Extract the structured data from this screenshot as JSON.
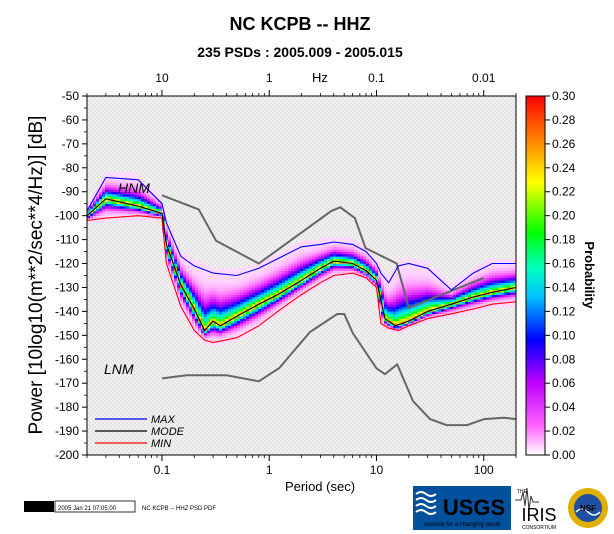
{
  "chart_data": {
    "type": "heatmap",
    "title": "NC KCPB -- HHZ",
    "subtitle": "235 PSDs : 2005.009 - 2005.015",
    "xlabel": "Period (sec)",
    "ylabel": "Power [10log10(m**2/sec**4/Hz)] [dB]",
    "top_axis_label": "Hz",
    "colorbar_label": "Probability",
    "x_scale": "log",
    "xlim": [
      0.02,
      200
    ],
    "ylim": [
      -200,
      -50
    ],
    "x_ticks": [
      0.1,
      1,
      10,
      100
    ],
    "x_tick_labels": [
      "0.1",
      "1",
      "10",
      "100"
    ],
    "top_ticks": [
      0.1,
      1,
      10,
      100
    ],
    "top_tick_labels": [
      "10",
      "1",
      "0.1",
      "0.01"
    ],
    "y_ticks": [
      -50,
      -60,
      -70,
      -80,
      -90,
      -100,
      -110,
      -120,
      -130,
      -140,
      -150,
      -160,
      -170,
      -180,
      -190,
      -200
    ],
    "y_tick_labels": [
      "-50",
      "-60",
      "-70",
      "-80",
      "-90",
      "-100",
      "-110",
      "-120",
      "-130",
      "-140",
      "-150",
      "-160",
      "-170",
      "-180",
      "-190",
      "-200"
    ],
    "colorbar_range": [
      0,
      0.3
    ],
    "colorbar_ticks": [
      0.0,
      0.02,
      0.04,
      0.06,
      0.08,
      0.1,
      0.12,
      0.14,
      0.16,
      0.18,
      0.2,
      0.22,
      0.24,
      0.26,
      0.28,
      0.3
    ],
    "colorbar_tick_labels": [
      "0.00",
      "0.02",
      "0.04",
      "0.06",
      "0.08",
      "0.10",
      "0.12",
      "0.14",
      "0.16",
      "0.18",
      "0.20",
      "0.22",
      "0.24",
      "0.26",
      "0.28",
      "0.30"
    ],
    "colormap": [
      "#ffffff",
      "#ff66ff",
      "#c000ff",
      "#0000ff",
      "#00c0ff",
      "#00ffc0",
      "#00ff00",
      "#ffff00",
      "#ff8000",
      "#ff0000"
    ],
    "legend": {
      "placement": "bottom-left",
      "entries": [
        {
          "label": "MAX",
          "color": "#0000ff"
        },
        {
          "label": "MODE",
          "color": "#000000"
        },
        {
          "label": "MIN",
          "color": "#ff0000"
        }
      ]
    },
    "model_labels": {
      "high": "HNM",
      "low": "LNM"
    },
    "model_color": "#666666",
    "series": {
      "nhnm": {
        "x": [
          0.1,
          0.22,
          0.32,
          0.8,
          3.8,
          4.6,
          6.3,
          7.9,
          15.4,
          20,
          100
        ],
        "y": [
          -91.5,
          -97.4,
          -110.5,
          -120,
          -98,
          -96.5,
          -101,
          -113.5,
          -120,
          -138.5,
          -126
        ]
      },
      "nlnm": {
        "x": [
          0.1,
          0.17,
          0.4,
          0.8,
          1.24,
          2.4,
          4.3,
          5,
          6,
          10,
          12,
          15.6,
          21.9,
          31.6,
          45,
          70,
          101,
          154,
          200
        ],
        "y": [
          -168,
          -166.7,
          -166.7,
          -169.2,
          -163.7,
          -148.6,
          -141.1,
          -141.1,
          -149,
          -163.8,
          -166.2,
          -162.1,
          -177.5,
          -185,
          -187.5,
          -187.5,
          -185,
          -184.4,
          -185
        ]
      },
      "max": {
        "x": [
          0.02,
          0.03,
          0.06,
          0.1,
          0.11,
          0.15,
          0.2,
          0.3,
          0.5,
          0.8,
          1.2,
          2,
          3,
          4,
          6,
          8,
          10,
          11,
          13,
          16,
          20,
          30,
          50,
          80,
          120,
          200
        ],
        "y": [
          -98,
          -84,
          -85,
          -95,
          -103,
          -117,
          -121,
          -124,
          -125,
          -122,
          -118,
          -113,
          -112,
          -111,
          -112,
          -115,
          -120,
          -124,
          -128,
          -121,
          -120,
          -122,
          -131,
          -124,
          -120,
          -120
        ]
      },
      "mode": {
        "x": [
          0.02,
          0.03,
          0.06,
          0.1,
          0.11,
          0.15,
          0.2,
          0.25,
          0.3,
          0.35,
          0.5,
          0.8,
          1.2,
          2,
          3,
          4,
          6,
          8,
          10,
          12,
          15,
          20,
          30,
          50,
          80,
          120,
          200
        ],
        "y": [
          -100,
          -93,
          -96,
          -99,
          -112,
          -129,
          -139,
          -148,
          -144,
          -146,
          -142,
          -137,
          -133,
          -127,
          -122,
          -119,
          -120,
          -123,
          -127,
          -143,
          -146,
          -144,
          -140,
          -137,
          -134,
          -132,
          -130
        ]
      },
      "min": {
        "x": [
          0.02,
          0.03,
          0.06,
          0.1,
          0.11,
          0.15,
          0.2,
          0.25,
          0.3,
          0.5,
          0.8,
          1.2,
          2,
          3,
          4,
          6,
          8,
          10,
          11,
          13,
          16,
          20,
          30,
          50,
          80,
          120,
          200
        ],
        "y": [
          -102,
          -101,
          -100,
          -101,
          -120,
          -138,
          -148,
          -152,
          -153,
          -151,
          -146,
          -140,
          -133,
          -128,
          -125,
          -124,
          -126,
          -130,
          -145,
          -147,
          -148,
          -146,
          -143,
          -141,
          -139,
          -137,
          -136
        ]
      }
    }
  },
  "colors": {
    "max": "#0000ff",
    "mode": "#000000",
    "min": "#ff0000",
    "model": "#666666"
  },
  "footer": {
    "gmt_label": "GMT",
    "timestamp": "2005 Jan 21 07:05:00",
    "caption": "NC KCPB -- HHZ PSD PDF"
  },
  "logos": {
    "usgs": "USGS",
    "usgs_tagline": "science for a changing world",
    "iris": "IRIS",
    "iris_prefix": "THE",
    "iris_sub": "CONSORTIUM",
    "nsf": "NSF"
  }
}
